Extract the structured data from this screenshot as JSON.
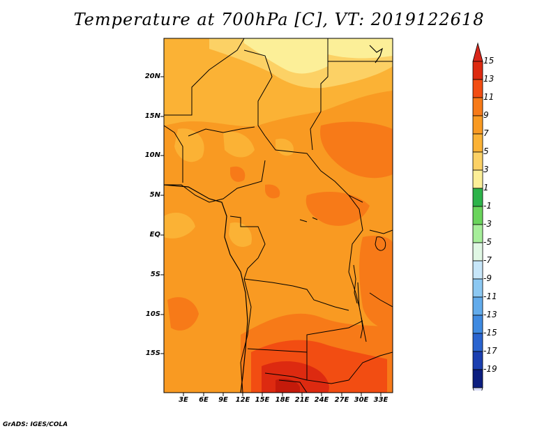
{
  "title": "Temperature at 700hPa [C], VT: 2019122618",
  "credit": "GrADS: IGES/COLA",
  "map": {
    "variable": "Temperature at 700hPa",
    "units": "C",
    "valid_time": "2019122618",
    "lat_labels": [
      "20N",
      "15N",
      "10N",
      "5N",
      "EQ",
      "5S",
      "10S",
      "15S"
    ],
    "lon_labels": [
      "3E",
      "6E",
      "9E",
      "12E",
      "15E",
      "18E",
      "21E",
      "24E",
      "27E",
      "30E",
      "33E"
    ]
  },
  "colorbar": {
    "labels": [
      "15",
      "13",
      "11",
      "9",
      "7",
      "5",
      "3",
      "1",
      "-1",
      "-3",
      "-5",
      "-7",
      "-9",
      "-11",
      "-13",
      "-15",
      "-17",
      "-19"
    ],
    "colors": [
      "#dd2a10",
      "#f24d12",
      "#f77a18",
      "#f99a22",
      "#fbb235",
      "#fcd165",
      "#fcef98",
      "#2db34a",
      "#6ad45c",
      "#a6ee9a",
      "#e0f7e4",
      "#c7e6f9",
      "#8cc8f2",
      "#62abeb",
      "#3f8ae1",
      "#2a64cf",
      "#1b3fb0",
      "#0c1e80"
    ],
    "under_color": "#d8dcf8",
    "over_color": "#d8261a"
  }
}
